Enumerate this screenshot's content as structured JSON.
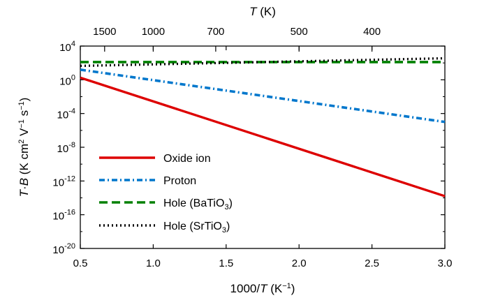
{
  "chart_data": {
    "type": "line",
    "title": "",
    "xlabel_prefix": "1000/",
    "xlabel_var": "T",
    "xlabel_unit_open": " (K",
    "xlabel_unit_sup": "−1",
    "xlabel_unit_close": ")",
    "top_xlabel_var": "T",
    "top_xlabel_unit": " (K)",
    "ylabel_var_a": "T",
    "ylabel_dot": "·",
    "ylabel_var_b": "B",
    "ylabel_units": " (K cm",
    "ylabel_sup_2": "2",
    "ylabel_units_2": " V",
    "ylabel_sup_m1a": "−1",
    "ylabel_units_3": " s",
    "ylabel_sup_m1b": "−1",
    "ylabel_close": ")",
    "xlim": [
      0.5,
      3.0
    ],
    "ylim_log10": [
      -20,
      4
    ],
    "yscale": "log",
    "x_ticks": [
      "0.5",
      "1.0",
      "1.5",
      "2.0",
      "2.5",
      "3.0"
    ],
    "x_tick_values": [
      0.5,
      1.0,
      1.5,
      2.0,
      2.5,
      3.0
    ],
    "y_tick_base": "10",
    "y_tick_exponents": [
      "4",
      "0",
      "-4",
      "-8",
      "-12",
      "-16",
      "-20"
    ],
    "y_tick_values_log10": [
      4,
      0,
      -4,
      -8,
      -12,
      -16,
      -20
    ],
    "top_ticks": [
      "1500",
      "1000",
      "700",
      "500",
      "400"
    ],
    "top_tick_temperatures_K": [
      1500,
      1000,
      700,
      500,
      400
    ],
    "legend_position": "lower-left",
    "grid": false,
    "series": [
      {
        "name": "Oxide ion",
        "name_sub": "",
        "name_close": "",
        "color": "#dd0000",
        "style": "solid",
        "x": [
          0.5,
          3.0
        ],
        "y_log10": [
          0.25,
          -13.8
        ]
      },
      {
        "name": "Proton",
        "name_sub": "",
        "name_close": "",
        "color": "#0077cc",
        "style": "dashdot",
        "x": [
          0.5,
          3.0
        ],
        "y_log10": [
          1.2,
          -5.0
        ]
      },
      {
        "name": "Hole (BaTiO",
        "name_sub": "3",
        "name_close": ")",
        "color": "#008000",
        "style": "dashed",
        "x": [
          0.5,
          3.0
        ],
        "y_log10": [
          2.1,
          2.1
        ]
      },
      {
        "name": "Hole (SrTiO",
        "name_sub": "3",
        "name_close": ")",
        "color": "#000000",
        "style": "dotted",
        "x": [
          0.5,
          3.0
        ],
        "y_log10": [
          1.65,
          2.55
        ]
      }
    ]
  }
}
